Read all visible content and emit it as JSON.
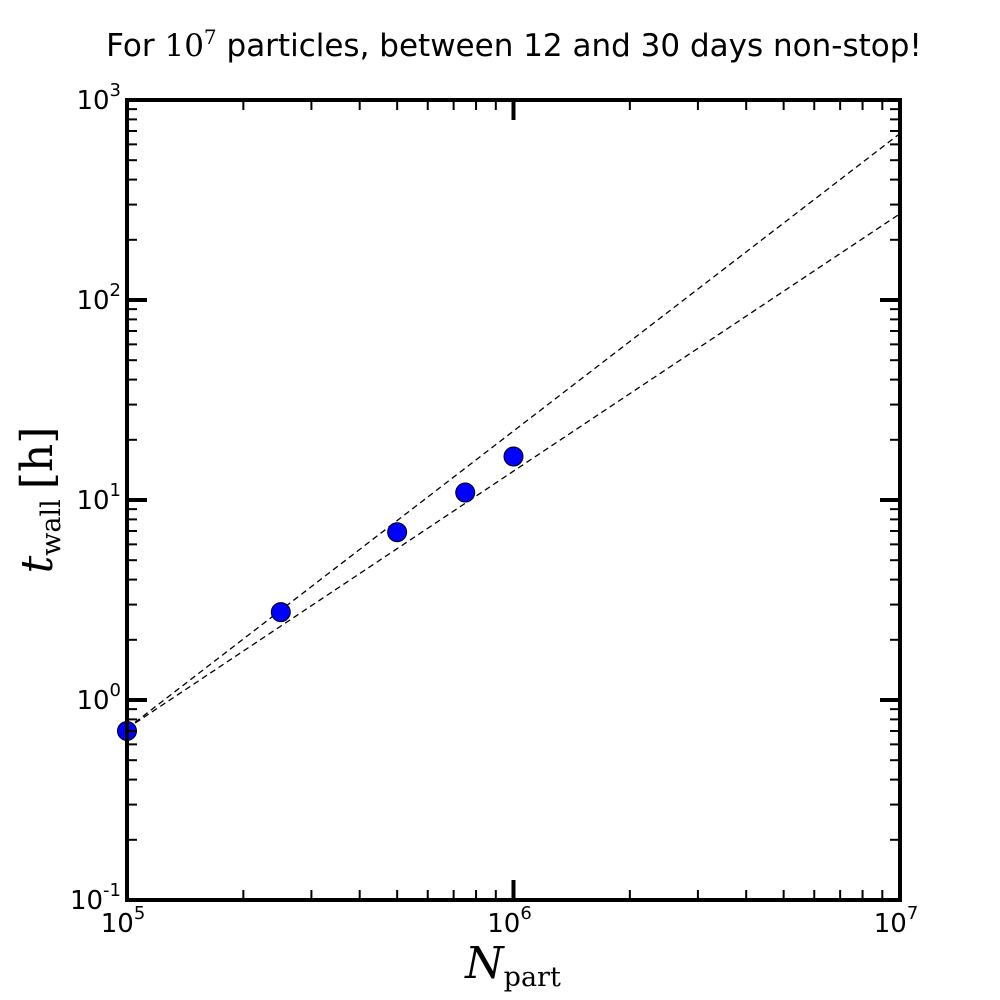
{
  "chart_data": {
    "type": "scatter",
    "title": {
      "before": "For ",
      "math_base": "10",
      "math_exp": "7",
      "after": "  particles, between 12 and 30 days non-stop!"
    },
    "xlabel": {
      "base": "N",
      "sub": "part"
    },
    "ylabel": {
      "base": "t",
      "sub": "wall",
      "unit": "[h]"
    },
    "x_scale": "log",
    "y_scale": "log",
    "xlim": [
      100000,
      10000000
    ],
    "ylim": [
      0.1,
      1000
    ],
    "x_ticks": [
      {
        "base": "10",
        "exp": "5",
        "value": 100000
      },
      {
        "base": "10",
        "exp": "6",
        "value": 1000000
      },
      {
        "base": "10",
        "exp": "7",
        "value": 10000000
      }
    ],
    "y_ticks": [
      {
        "base": "10",
        "exp": "-1",
        "value": 0.1
      },
      {
        "base": "10",
        "exp": "0",
        "value": 1
      },
      {
        "base": "10",
        "exp": "1",
        "value": 10
      },
      {
        "base": "10",
        "exp": "2",
        "value": 100
      },
      {
        "base": "10",
        "exp": "3",
        "value": 1000
      }
    ],
    "grid": false,
    "points": [
      {
        "x": 100000,
        "y": 0.7
      },
      {
        "x": 250000,
        "y": 2.75
      },
      {
        "x": 500000,
        "y": 6.9
      },
      {
        "x": 750000,
        "y": 10.9
      },
      {
        "x": 1000000,
        "y": 16.5
      }
    ],
    "marker_color": "#0000ff",
    "fit_lines": [
      {
        "x": [
          100000,
          10000000
        ],
        "y": [
          0.72,
          680
        ]
      },
      {
        "x": [
          100000,
          10000000
        ],
        "y": [
          0.72,
          270
        ]
      }
    ],
    "fit_line_style": "dashed"
  }
}
